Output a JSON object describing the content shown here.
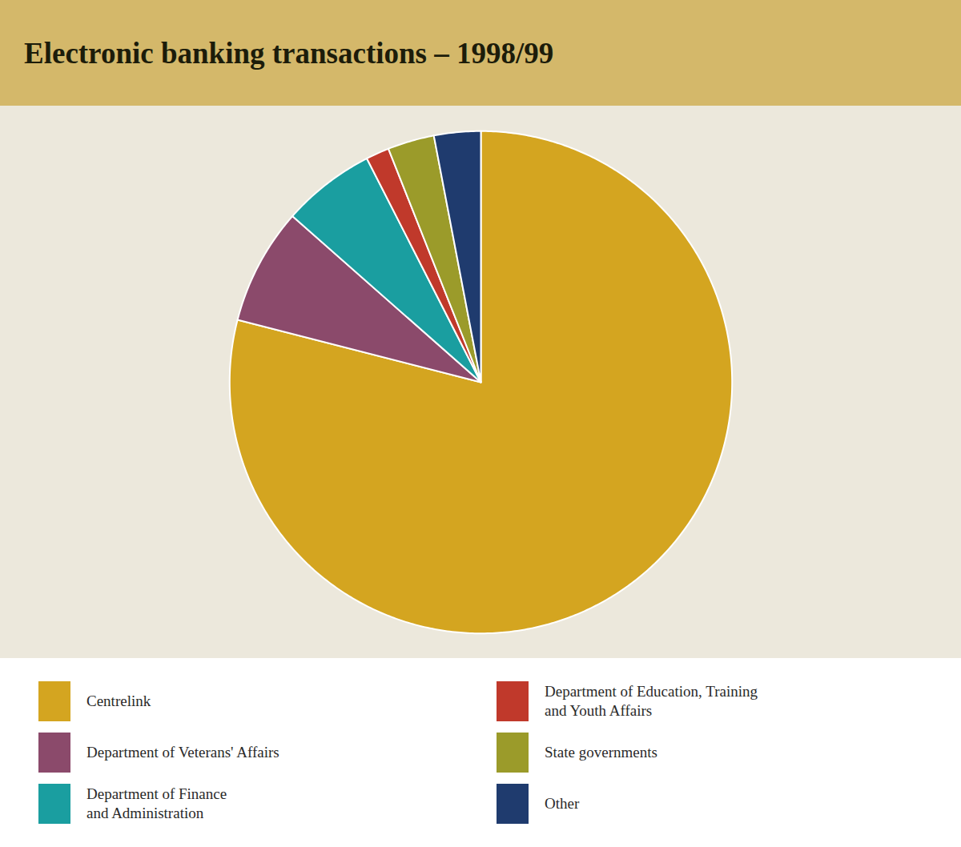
{
  "chart_data": {
    "type": "pie",
    "title": "Electronic banking transactions – 1998/99",
    "categories": [
      "Centrelink",
      "Department of Veterans' Affairs",
      "Department of Finance\nand Administration",
      "Department of Education, Training\nand Youth Affairs",
      "State governments",
      "Other"
    ],
    "values": [
      79.0,
      7.5,
      6.0,
      1.5,
      3.0,
      3.0
    ],
    "colors": [
      "#D4A520",
      "#8B4A6B",
      "#1A9EA0",
      "#C0392B",
      "#9B9B2A",
      "#1F3B6E"
    ],
    "legend": "bottom"
  }
}
